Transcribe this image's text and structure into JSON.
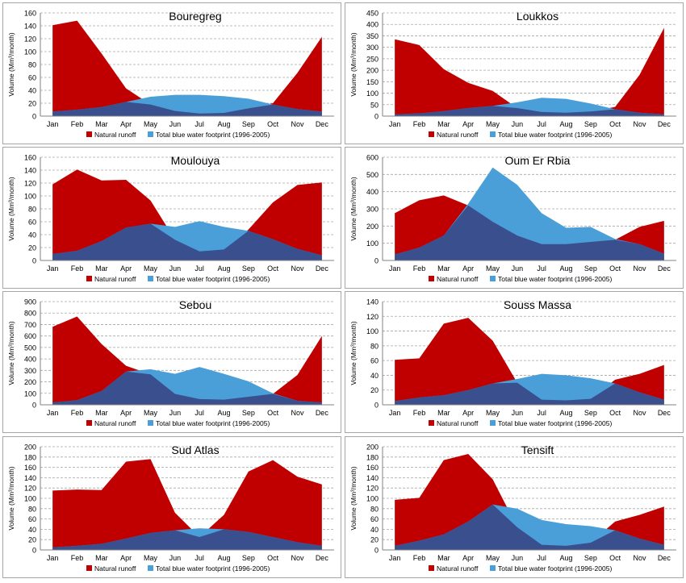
{
  "legend_labels": {
    "runoff": "Natural runoff",
    "footprint": "Total blue water footprint (1996-2005)"
  },
  "y_axis_label": "Volume (Mm³/month)",
  "colors": {
    "runoff": "#c00000",
    "footprint": "#4a9fd8",
    "overlap": "#3a4f8e",
    "grid": "#a6a6a6",
    "axis": "#808080"
  },
  "chart_data": [
    {
      "type": "area",
      "title": "Bouregreg",
      "categories": [
        "Jan",
        "Feb",
        "Mar",
        "Apr",
        "May",
        "Jun",
        "Jul",
        "Aug",
        "Sep",
        "Oct",
        "Nov",
        "Dec"
      ],
      "ylim": [
        0,
        160
      ],
      "yticks": [
        0,
        20,
        40,
        60,
        80,
        100,
        120,
        140,
        160
      ],
      "series": [
        {
          "name": "Natural runoff",
          "values": [
            141,
            148,
            97,
            43,
            18,
            8,
            4,
            5,
            12,
            20,
            67,
            123
          ]
        },
        {
          "name": "Total blue water footprint (1996-2005)",
          "values": [
            7,
            10,
            14,
            22,
            30,
            33,
            33,
            31,
            27,
            18,
            11,
            7
          ]
        }
      ]
    },
    {
      "type": "area",
      "title": "Loukkos",
      "categories": [
        "Jan",
        "Feb",
        "Mar",
        "Apr",
        "May",
        "Jun",
        "Jul",
        "Aug",
        "Sep",
        "Oct",
        "Nov",
        "Dec"
      ],
      "ylim": [
        0,
        450
      ],
      "yticks": [
        0,
        50,
        100,
        150,
        200,
        250,
        300,
        350,
        400,
        450
      ],
      "series": [
        {
          "name": "Natural runoff",
          "values": [
            335,
            310,
            205,
            145,
            110,
            35,
            18,
            15,
            20,
            40,
            180,
            385
          ]
        },
        {
          "name": "Total blue water footprint (1996-2005)",
          "values": [
            8,
            12,
            22,
            35,
            45,
            60,
            80,
            75,
            55,
            30,
            15,
            8
          ]
        }
      ]
    },
    {
      "type": "area",
      "title": "Moulouya",
      "categories": [
        "Jan",
        "Feb",
        "Mar",
        "Apr",
        "May",
        "Jun",
        "Jul",
        "Aug",
        "Sep",
        "Oct",
        "Nov",
        "Dec"
      ],
      "ylim": [
        0,
        160
      ],
      "yticks": [
        0,
        20,
        40,
        60,
        80,
        100,
        120,
        140,
        160
      ],
      "series": [
        {
          "name": "Natural runoff",
          "values": [
            118,
            141,
            124,
            125,
            93,
            32,
            14,
            17,
            48,
            90,
            117,
            121
          ]
        },
        {
          "name": "Total blue water footprint (1996-2005)",
          "values": [
            10,
            15,
            30,
            51,
            57,
            52,
            61,
            52,
            46,
            33,
            18,
            8
          ]
        }
      ]
    },
    {
      "type": "area",
      "title": "Oum Er Rbia",
      "categories": [
        "Jan",
        "Feb",
        "Mar",
        "Apr",
        "May",
        "Jun",
        "Jul",
        "Aug",
        "Sep",
        "Oct",
        "Nov",
        "Dec"
      ],
      "ylim": [
        0,
        600
      ],
      "yticks": [
        0,
        100,
        200,
        300,
        400,
        500,
        600
      ],
      "series": [
        {
          "name": "Natural runoff",
          "values": [
            275,
            350,
            378,
            320,
            225,
            145,
            95,
            95,
            108,
            120,
            195,
            230
          ]
        },
        {
          "name": "Total blue water footprint (1996-2005)",
          "values": [
            35,
            75,
            145,
            330,
            540,
            440,
            275,
            190,
            195,
            125,
            95,
            40
          ]
        }
      ]
    },
    {
      "type": "area",
      "title": "Sebou",
      "categories": [
        "Jan",
        "Feb",
        "Mar",
        "Apr",
        "May",
        "Jun",
        "Jul",
        "Aug",
        "Sep",
        "Oct",
        "Nov",
        "Dec"
      ],
      "ylim": [
        0,
        900
      ],
      "yticks": [
        0,
        100,
        200,
        300,
        400,
        500,
        600,
        700,
        800,
        900
      ],
      "series": [
        {
          "name": "Natural runoff",
          "values": [
            680,
            770,
            530,
            340,
            265,
            95,
            50,
            45,
            70,
            95,
            260,
            600
          ]
        },
        {
          "name": "Total blue water footprint (1996-2005)",
          "values": [
            20,
            40,
            120,
            290,
            310,
            270,
            330,
            270,
            205,
            100,
            35,
            20
          ]
        }
      ]
    },
    {
      "type": "area",
      "title": "Souss Massa",
      "categories": [
        "Jan",
        "Feb",
        "Mar",
        "Apr",
        "May",
        "Jun",
        "Jul",
        "Aug",
        "Sep",
        "Oct",
        "Nov",
        "Dec"
      ],
      "ylim": [
        0,
        140
      ],
      "yticks": [
        0,
        20,
        40,
        60,
        80,
        100,
        120,
        140
      ],
      "series": [
        {
          "name": "Natural runoff",
          "values": [
            61,
            63,
            110,
            118,
            87,
            30,
            7,
            6,
            8,
            34,
            42,
            54
          ]
        },
        {
          "name": "Total blue water footprint (1996-2005)",
          "values": [
            5,
            10,
            13,
            20,
            29,
            35,
            42,
            40,
            36,
            29,
            17,
            7
          ]
        }
      ]
    },
    {
      "type": "area",
      "title": "Sud Atlas",
      "categories": [
        "Jan",
        "Feb",
        "Mar",
        "Apr",
        "May",
        "Jun",
        "Jul",
        "Aug",
        "Sep",
        "Oct",
        "Nov",
        "Dec"
      ],
      "ylim": [
        0,
        200
      ],
      "yticks": [
        0,
        20,
        40,
        60,
        80,
        100,
        120,
        140,
        160,
        180,
        200
      ],
      "series": [
        {
          "name": "Natural runoff",
          "values": [
            115,
            117,
            116,
            171,
            176,
            72,
            25,
            68,
            152,
            174,
            142,
            127
          ]
        },
        {
          "name": "Total blue water footprint (1996-2005)",
          "values": [
            5,
            8,
            12,
            22,
            33,
            38,
            42,
            40,
            35,
            25,
            15,
            8
          ]
        }
      ]
    },
    {
      "type": "area",
      "title": "Tensift",
      "categories": [
        "Jan",
        "Feb",
        "Mar",
        "Apr",
        "May",
        "Jun",
        "Jul",
        "Aug",
        "Sep",
        "Oct",
        "Nov",
        "Dec"
      ],
      "ylim": [
        0,
        200
      ],
      "yticks": [
        0,
        20,
        40,
        60,
        80,
        100,
        120,
        140,
        160,
        180,
        200
      ],
      "series": [
        {
          "name": "Natural runoff",
          "values": [
            97,
            101,
            174,
            186,
            137,
            44,
            10,
            8,
            14,
            55,
            68,
            84
          ]
        },
        {
          "name": "Total blue water footprint (1996-2005)",
          "values": [
            8,
            18,
            30,
            55,
            88,
            80,
            58,
            50,
            46,
            38,
            22,
            10
          ]
        }
      ]
    }
  ]
}
